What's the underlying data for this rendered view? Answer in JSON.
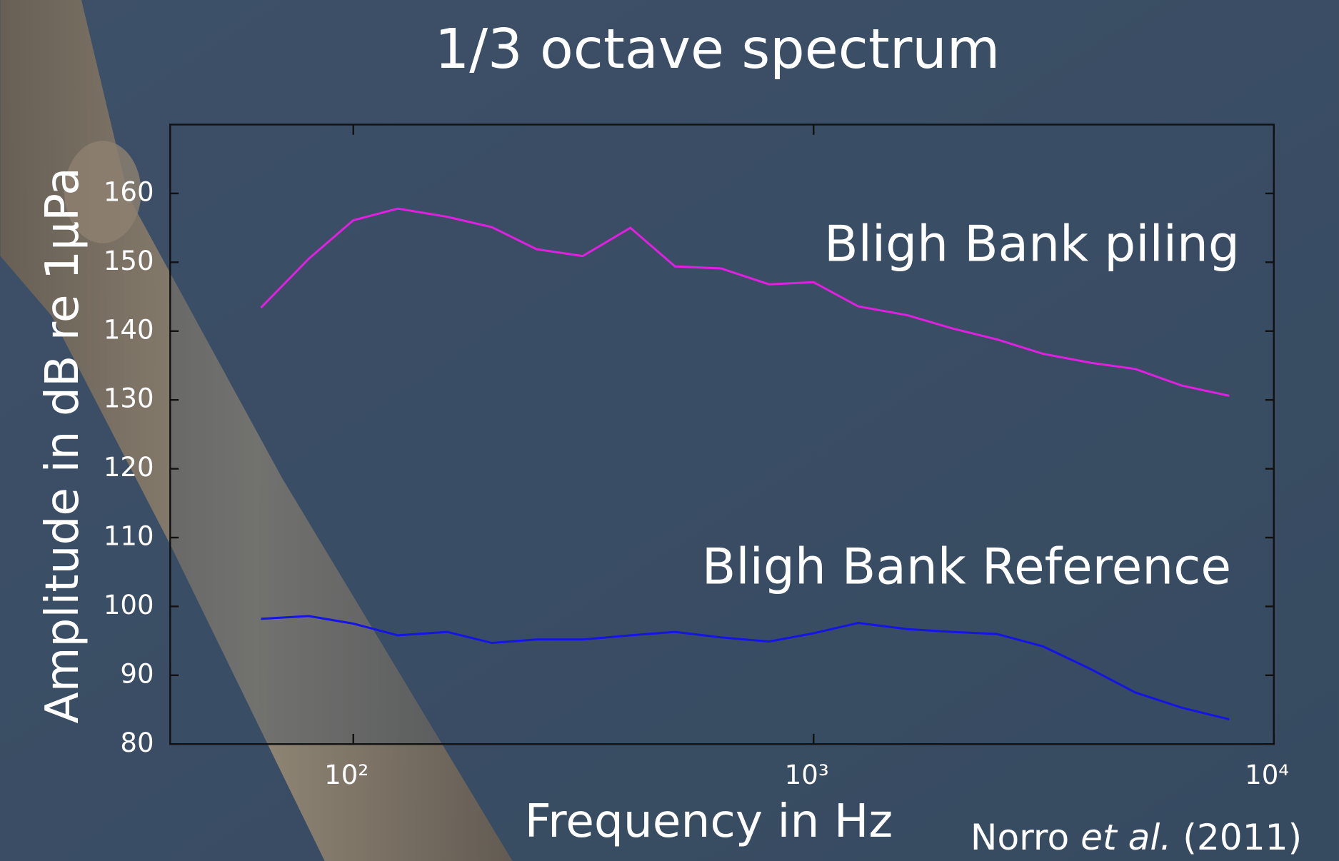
{
  "chart_data": {
    "type": "line",
    "title": "1/3 octave spectrum",
    "x_label": "Frequency in Hz",
    "y_label": "Amplitude in dB re 1µPa",
    "x_scale": "log",
    "x": [
      63,
      80,
      100,
      125,
      160,
      200,
      250,
      315,
      400,
      500,
      630,
      800,
      1000,
      1250,
      1600,
      2000,
      2500,
      3150,
      4000,
      5000,
      6300,
      8000
    ],
    "series": [
      {
        "name": "Bligh Bank piling",
        "color": "#e020e0",
        "values": [
          143.4,
          150.5,
          156.1,
          157.8,
          156.6,
          155.1,
          151.9,
          150.9,
          155.0,
          149.4,
          149.1,
          146.8,
          147.1,
          143.6,
          142.3,
          140.4,
          138.8,
          136.7,
          135.4,
          134.5,
          132.1,
          130.6
        ]
      },
      {
        "name": "Bligh Bank Reference",
        "color": "#1414e6",
        "values": [
          98.2,
          98.6,
          97.5,
          95.8,
          96.3,
          94.7,
          95.2,
          95.2,
          95.8,
          96.3,
          95.5,
          94.9,
          96.1,
          97.6,
          96.7,
          96.3,
          96.0,
          94.2,
          90.9,
          87.5,
          85.3,
          83.6
        ]
      }
    ],
    "xlim": [
      40,
      10000
    ],
    "xticks": [
      {
        "value": 100,
        "label": "10²"
      },
      {
        "value": 1000,
        "label": "10³"
      },
      {
        "value": 10000,
        "label": "10⁴"
      }
    ],
    "ylim": [
      80,
      170
    ],
    "yticks": [
      80,
      90,
      100,
      110,
      120,
      130,
      140,
      150,
      160
    ],
    "citation": {
      "author": "Norro",
      "etal": "et al.",
      "year": "(2011)"
    }
  }
}
